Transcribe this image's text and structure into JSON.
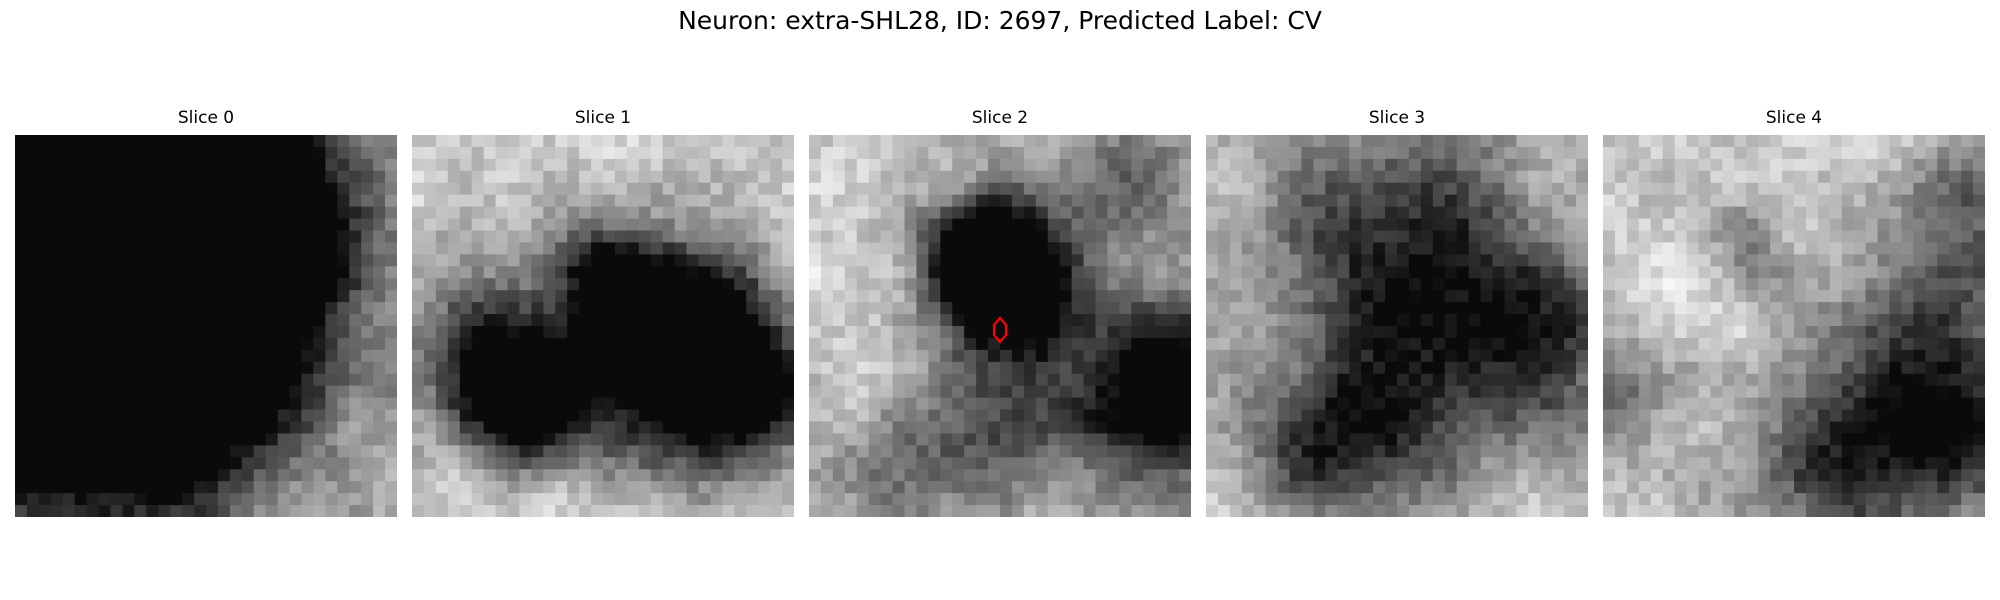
{
  "figure": {
    "title": "Neuron: extra-SHL28, ID: 2697, Predicted Label: CV"
  },
  "colors": {
    "background": "#ffffff",
    "marker": "#ff0000"
  },
  "slices": [
    {
      "label": "Slice 0",
      "dark_spots": [
        [
          0.17,
          0.13,
          0.35,
          0.06
        ],
        [
          0.38,
          0.58,
          0.6,
          0.39
        ],
        [
          0.21,
          0.53,
          0.72,
          0.78
        ],
        [
          0.14,
          0.25,
          1.12,
          0.62
        ],
        [
          0.22,
          0.23,
          0.95,
          0.93
        ],
        [
          0.36,
          0.27,
          1.08,
          0.59
        ],
        [
          0.26,
          0.32,
          0.55,
          0.98
        ]
      ],
      "seed": 11
    },
    {
      "label": "Slice 1",
      "dark_spots": [
        [
          0.21,
          0.56,
          0.55,
          0.32
        ],
        [
          0.28,
          0.67,
          0.58,
          0.28
        ],
        [
          0.32,
          0.75,
          0.45,
          0.25
        ],
        [
          0.48,
          0.34,
          0.38,
          0.22
        ],
        [
          0.58,
          0.44,
          0.52,
          0.34
        ],
        [
          0.68,
          0.54,
          0.56,
          0.39
        ],
        [
          0.76,
          0.63,
          0.62,
          0.44
        ],
        [
          0.87,
          0.65,
          0.5,
          0.31
        ]
      ],
      "seed": 23
    },
    {
      "label": "Slice 2",
      "dark_spots": [
        [
          0.47,
          0.29,
          0.5,
          0.26
        ],
        [
          0.58,
          0.31,
          0.43,
          0.28
        ],
        [
          0.46,
          0.45,
          0.42,
          0.28
        ],
        [
          0.57,
          0.44,
          0.4,
          0.26
        ],
        [
          0.41,
          0.32,
          0.4,
          0.22
        ],
        [
          0.95,
          0.72,
          0.62,
          0.46
        ],
        [
          0.92,
          0.62,
          0.5,
          0.33
        ],
        [
          0.5,
          0.76,
          0.42,
          0.38
        ],
        [
          0.2,
          0.9,
          0.32,
          0.3
        ],
        [
          0.85,
          0.12,
          0.4,
          0.32
        ]
      ],
      "seed": 37,
      "marker": true
    },
    {
      "label": "Slice 3",
      "dark_spots": [
        [
          0.5,
          0.32,
          0.68,
          0.58
        ],
        [
          0.87,
          0.56,
          0.58,
          0.42
        ],
        [
          0.45,
          0.8,
          0.52,
          0.4
        ],
        [
          0.25,
          0.82,
          0.33,
          0.3
        ]
      ],
      "seed": 53
    },
    {
      "label": "Slice 4",
      "dark_spots": [
        [
          0.9,
          0.58,
          0.56,
          0.5
        ],
        [
          0.62,
          0.86,
          0.52,
          0.45
        ],
        [
          0.38,
          0.26,
          0.28,
          0.2
        ],
        [
          0.95,
          0.16,
          0.38,
          0.3
        ],
        [
          0.03,
          0.7,
          0.32,
          0.28
        ],
        [
          0.93,
          0.83,
          0.38,
          0.3
        ]
      ],
      "seed": 71
    }
  ]
}
